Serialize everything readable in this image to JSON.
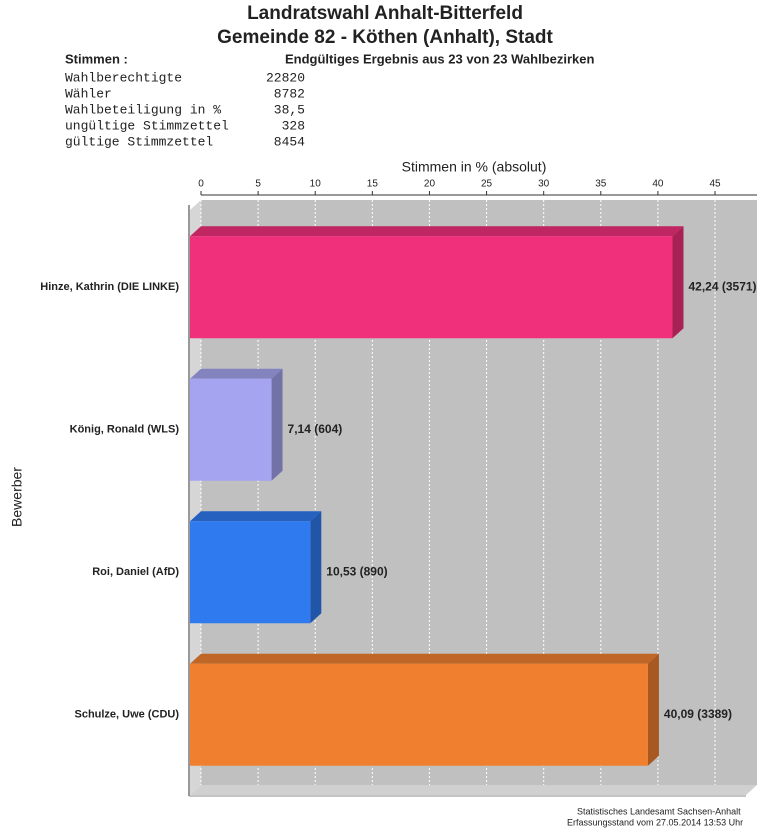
{
  "header": {
    "title": "Landratswahl Anhalt-Bitterfeld",
    "subtitle": "Gemeinde 82 - Köthen (Anhalt), Stadt"
  },
  "summary": {
    "label": "Stimmen  :",
    "status": "Endgültiges Ergebnis aus 23 von 23 Wahlbezirken",
    "rows": [
      [
        "Wahlberechtigte",
        "22820"
      ],
      [
        "Wähler",
        "8782"
      ],
      [
        "Wahlbeteiligung in %",
        "38,5"
      ],
      [
        "ungültige Stimmzettel",
        "328"
      ],
      [
        "gültige Stimmzettel",
        "8454"
      ]
    ]
  },
  "chart_data": {
    "type": "bar",
    "orientation": "horizontal",
    "x_label": "Stimmen in % (absolut)",
    "y_label": "Bewerber",
    "categories": [
      "Hinze, Kathrin (DIE LINKE)",
      "König, Ronald (WLS)",
      "Roi, Daniel (AfD)",
      "Schulze, Uwe (CDU)"
    ],
    "values": [
      42.24,
      7.14,
      10.53,
      40.09
    ],
    "value_labels": [
      "42,24 (3571)",
      "7,14 (604)",
      "10,53 (890)",
      "40,09 (3389)"
    ],
    "colors": [
      "#f0307a",
      "#a4a4f0",
      "#307af0",
      "#f08030"
    ],
    "xlim": [
      0,
      48.5
    ],
    "xticks": [
      0,
      5,
      10,
      15,
      20,
      25,
      30,
      35,
      40,
      45
    ],
    "grid": true
  },
  "footer": {
    "source": "Statistisches Landesamt Sachsen-Anhalt",
    "timestamp": "Erfassungsstand vom 27.05.2014 13:53 Uhr"
  }
}
